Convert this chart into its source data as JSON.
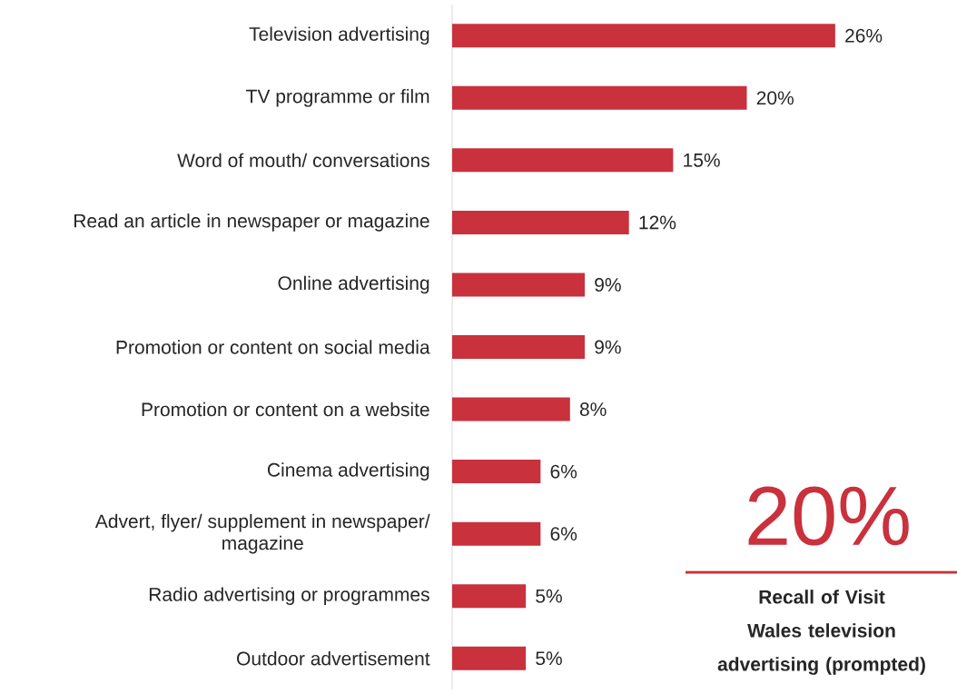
{
  "chart_data": {
    "type": "bar",
    "orientation": "horizontal",
    "categories": [
      "Television advertising",
      "TV programme or film",
      "Word of mouth/ conversations",
      "Read an article in newspaper or magazine",
      "Online advertising",
      "Promotion or content on social media",
      "Promotion or content on a website",
      "Cinema advertising",
      "Advert, flyer/ supplement in newspaper/ magazine",
      "Radio advertising or programmes",
      "Outdoor advertisement"
    ],
    "values": [
      26,
      20,
      15,
      12,
      9,
      9,
      8,
      6,
      6,
      5,
      5
    ],
    "value_labels": [
      "26%",
      "20%",
      "15%",
      "12%",
      "9%",
      "9%",
      "8%",
      "6%",
      "6%",
      "5%",
      "5%"
    ],
    "color": "#c9313d",
    "annotations": [
      "20%",
      "Recall of Visit Wales television advertising (prompted)"
    ]
  }
}
